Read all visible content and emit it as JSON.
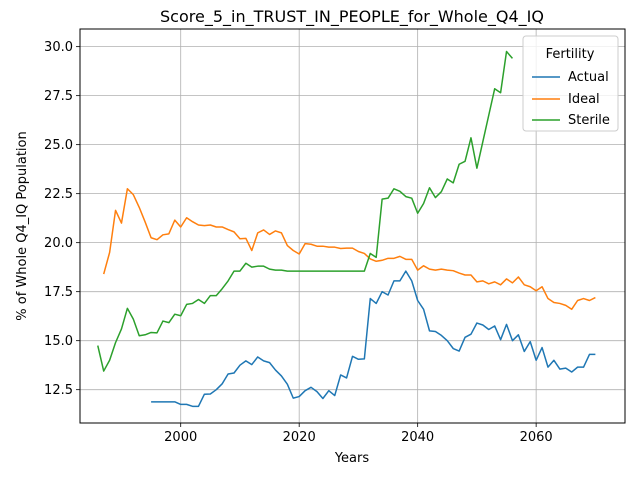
{
  "chart_data": {
    "type": "line",
    "title": "Score_5_in_TRUST_IN_PEOPLE_for_Whole_Q4_IQ",
    "xlabel": "Years",
    "ylabel": "% of Whole Q4_IQ Population",
    "xlim": [
      1983,
      2075
    ],
    "ylim": [
      10.8,
      30.9
    ],
    "xticks": [
      2000,
      2020,
      2040,
      2060
    ],
    "yticks": [
      12.5,
      15.0,
      17.5,
      20.0,
      22.5,
      25.0,
      27.5,
      30.0
    ],
    "xtick_labels": [
      "2000",
      "2020",
      "2040",
      "2060"
    ],
    "ytick_labels": [
      "12.5",
      "15.0",
      "17.5",
      "20.0",
      "22.5",
      "25.0",
      "27.5",
      "30.0"
    ],
    "grid": true,
    "legend": {
      "title": "Fertility",
      "placement": "top-right"
    },
    "series": [
      {
        "name": "Actual",
        "color": "#1f77b4",
        "points": [
          [
            1995,
            11.88
          ],
          [
            1996,
            11.88
          ],
          [
            1997,
            11.88
          ],
          [
            1998,
            11.88
          ],
          [
            1999,
            11.88
          ],
          [
            2000,
            11.75
          ],
          [
            2001,
            11.75
          ],
          [
            2002,
            11.65
          ],
          [
            2003,
            11.65
          ],
          [
            2004,
            12.27
          ],
          [
            2005,
            12.28
          ],
          [
            2006,
            12.5
          ],
          [
            2007,
            12.8
          ],
          [
            2008,
            13.3
          ],
          [
            2009,
            13.35
          ],
          [
            2010,
            13.75
          ],
          [
            2011,
            13.97
          ],
          [
            2012,
            13.78
          ],
          [
            2013,
            14.17
          ],
          [
            2014,
            13.97
          ],
          [
            2015,
            13.88
          ],
          [
            2016,
            13.5
          ],
          [
            2017,
            13.2
          ],
          [
            2018,
            12.78
          ],
          [
            2019,
            12.07
          ],
          [
            2020,
            12.15
          ],
          [
            2021,
            12.45
          ],
          [
            2022,
            12.62
          ],
          [
            2023,
            12.4
          ],
          [
            2024,
            12.05
          ],
          [
            2025,
            12.45
          ],
          [
            2026,
            12.2
          ],
          [
            2027,
            13.25
          ],
          [
            2028,
            13.1
          ],
          [
            2029,
            14.2
          ],
          [
            2030,
            14.05
          ],
          [
            2031,
            14.07
          ],
          [
            2032,
            17.15
          ],
          [
            2033,
            16.9
          ],
          [
            2034,
            17.5
          ],
          [
            2035,
            17.33
          ],
          [
            2036,
            18.05
          ],
          [
            2037,
            18.05
          ],
          [
            2038,
            18.55
          ],
          [
            2039,
            18.05
          ],
          [
            2040,
            17.05
          ],
          [
            2041,
            16.6
          ],
          [
            2042,
            15.5
          ],
          [
            2043,
            15.47
          ],
          [
            2044,
            15.27
          ],
          [
            2045,
            15.0
          ],
          [
            2046,
            14.6
          ],
          [
            2047,
            14.47
          ],
          [
            2048,
            15.17
          ],
          [
            2049,
            15.33
          ],
          [
            2050,
            15.9
          ],
          [
            2051,
            15.8
          ],
          [
            2052,
            15.57
          ],
          [
            2053,
            15.75
          ],
          [
            2054,
            15.05
          ],
          [
            2055,
            15.83
          ],
          [
            2056,
            15.0
          ],
          [
            2057,
            15.3
          ],
          [
            2058,
            14.45
          ],
          [
            2059,
            14.95
          ],
          [
            2060,
            14.0
          ],
          [
            2061,
            14.65
          ],
          [
            2062,
            13.65
          ],
          [
            2063,
            14.0
          ],
          [
            2064,
            13.55
          ],
          [
            2065,
            13.6
          ],
          [
            2066,
            13.4
          ],
          [
            2067,
            13.65
          ],
          [
            2068,
            13.65
          ],
          [
            2069,
            14.3
          ],
          [
            2070,
            14.3
          ]
        ]
      },
      {
        "name": "Ideal",
        "color": "#ff7f0e",
        "points": [
          [
            1987,
            18.4
          ],
          [
            1988,
            19.5
          ],
          [
            1989,
            21.65
          ],
          [
            1990,
            21.0
          ],
          [
            1991,
            22.75
          ],
          [
            1992,
            22.45
          ],
          [
            1993,
            21.8
          ],
          [
            1994,
            21.05
          ],
          [
            1995,
            20.25
          ],
          [
            1996,
            20.15
          ],
          [
            1997,
            20.4
          ],
          [
            1998,
            20.45
          ],
          [
            1999,
            21.15
          ],
          [
            2000,
            20.8
          ],
          [
            2001,
            21.27
          ],
          [
            2002,
            21.07
          ],
          [
            2003,
            20.9
          ],
          [
            2004,
            20.87
          ],
          [
            2005,
            20.9
          ],
          [
            2006,
            20.8
          ],
          [
            2007,
            20.8
          ],
          [
            2008,
            20.67
          ],
          [
            2009,
            20.55
          ],
          [
            2010,
            20.2
          ],
          [
            2011,
            20.22
          ],
          [
            2012,
            19.6
          ],
          [
            2013,
            20.5
          ],
          [
            2014,
            20.65
          ],
          [
            2015,
            20.42
          ],
          [
            2016,
            20.6
          ],
          [
            2017,
            20.5
          ],
          [
            2018,
            19.85
          ],
          [
            2019,
            19.6
          ],
          [
            2020,
            19.42
          ],
          [
            2021,
            19.95
          ],
          [
            2022,
            19.92
          ],
          [
            2023,
            19.82
          ],
          [
            2024,
            19.82
          ],
          [
            2025,
            19.77
          ],
          [
            2026,
            19.77
          ],
          [
            2027,
            19.7
          ],
          [
            2028,
            19.72
          ],
          [
            2029,
            19.72
          ],
          [
            2030,
            19.55
          ],
          [
            2031,
            19.45
          ],
          [
            2032,
            19.17
          ],
          [
            2033,
            19.05
          ],
          [
            2034,
            19.1
          ],
          [
            2035,
            19.2
          ],
          [
            2036,
            19.2
          ],
          [
            2037,
            19.3
          ],
          [
            2038,
            19.15
          ],
          [
            2039,
            19.15
          ],
          [
            2040,
            18.6
          ],
          [
            2041,
            18.82
          ],
          [
            2042,
            18.65
          ],
          [
            2043,
            18.6
          ],
          [
            2044,
            18.65
          ],
          [
            2045,
            18.6
          ],
          [
            2046,
            18.57
          ],
          [
            2047,
            18.45
          ],
          [
            2048,
            18.35
          ],
          [
            2049,
            18.35
          ],
          [
            2050,
            18.0
          ],
          [
            2051,
            18.05
          ],
          [
            2052,
            17.9
          ],
          [
            2053,
            18.0
          ],
          [
            2054,
            17.85
          ],
          [
            2055,
            18.15
          ],
          [
            2056,
            17.95
          ],
          [
            2057,
            18.25
          ],
          [
            2058,
            17.85
          ],
          [
            2059,
            17.75
          ],
          [
            2060,
            17.55
          ],
          [
            2061,
            17.75
          ],
          [
            2062,
            17.15
          ],
          [
            2063,
            16.95
          ],
          [
            2064,
            16.9
          ],
          [
            2065,
            16.8
          ],
          [
            2066,
            16.6
          ],
          [
            2067,
            17.05
          ],
          [
            2068,
            17.15
          ],
          [
            2069,
            17.05
          ],
          [
            2070,
            17.2
          ]
        ]
      },
      {
        "name": "Sterile",
        "color": "#2ca02c",
        "points": [
          [
            1986,
            14.75
          ],
          [
            1987,
            13.45
          ],
          [
            1988,
            14.0
          ],
          [
            1989,
            14.9
          ],
          [
            1990,
            15.6
          ],
          [
            1991,
            16.65
          ],
          [
            1992,
            16.1
          ],
          [
            1993,
            15.25
          ],
          [
            1994,
            15.3
          ],
          [
            1995,
            15.42
          ],
          [
            1996,
            15.4
          ],
          [
            1997,
            16.0
          ],
          [
            1998,
            15.92
          ],
          [
            1999,
            16.35
          ],
          [
            2000,
            16.27
          ],
          [
            2001,
            16.85
          ],
          [
            2002,
            16.9
          ],
          [
            2003,
            17.1
          ],
          [
            2004,
            16.9
          ],
          [
            2005,
            17.3
          ],
          [
            2006,
            17.3
          ],
          [
            2007,
            17.65
          ],
          [
            2008,
            18.05
          ],
          [
            2009,
            18.55
          ],
          [
            2010,
            18.55
          ],
          [
            2011,
            18.95
          ],
          [
            2012,
            18.75
          ],
          [
            2013,
            18.8
          ],
          [
            2014,
            18.8
          ],
          [
            2015,
            18.65
          ],
          [
            2016,
            18.6
          ],
          [
            2017,
            18.6
          ],
          [
            2018,
            18.55
          ],
          [
            2019,
            18.55
          ],
          [
            2020,
            18.55
          ],
          [
            2021,
            18.55
          ],
          [
            2022,
            18.55
          ],
          [
            2023,
            18.55
          ],
          [
            2024,
            18.55
          ],
          [
            2025,
            18.55
          ],
          [
            2026,
            18.55
          ],
          [
            2027,
            18.55
          ],
          [
            2028,
            18.55
          ],
          [
            2029,
            18.55
          ],
          [
            2030,
            18.55
          ],
          [
            2031,
            18.55
          ],
          [
            2032,
            19.45
          ],
          [
            2033,
            19.25
          ],
          [
            2034,
            22.22
          ],
          [
            2035,
            22.27
          ],
          [
            2036,
            22.75
          ],
          [
            2037,
            22.62
          ],
          [
            2038,
            22.35
          ],
          [
            2039,
            22.27
          ],
          [
            2040,
            21.5
          ],
          [
            2041,
            22.0
          ],
          [
            2042,
            22.8
          ],
          [
            2043,
            22.3
          ],
          [
            2044,
            22.6
          ],
          [
            2045,
            23.25
          ],
          [
            2046,
            23.05
          ],
          [
            2047,
            24.0
          ],
          [
            2048,
            24.15
          ],
          [
            2049,
            25.35
          ],
          [
            2050,
            23.8
          ],
          [
            2051,
            25.15
          ],
          [
            2052,
            26.5
          ],
          [
            2053,
            27.85
          ],
          [
            2054,
            27.65
          ],
          [
            2055,
            29.75
          ],
          [
            2056,
            29.4
          ]
        ]
      }
    ]
  }
}
